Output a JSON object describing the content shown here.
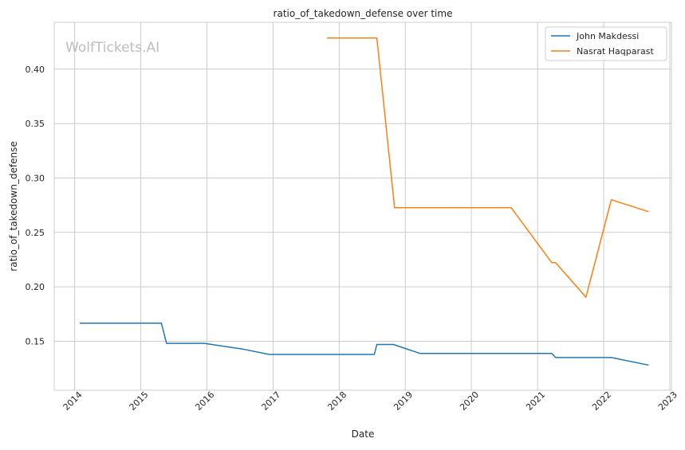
{
  "chart_data": {
    "type": "line",
    "title": "ratio_of_takedown_defense over time",
    "xlabel": "Date",
    "ylabel": "ratio_of_takedown_defense",
    "watermark": "WolfTickets.AI",
    "x_ticks": [
      "2014",
      "2015",
      "2016",
      "2017",
      "2018",
      "2019",
      "2020",
      "2021",
      "2022",
      "2023"
    ],
    "y_ticks": [
      "0.15",
      "0.20",
      "0.25",
      "0.30",
      "0.35",
      "0.40"
    ],
    "xlim": [
      "2013-09-10",
      "2023-01-10"
    ],
    "ylim": [
      0.105,
      0.443
    ],
    "grid": true,
    "legend_position": "top-right",
    "series": [
      {
        "name": "John Makdessi",
        "color": "#1f77b4",
        "points": [
          [
            "2014-02-01",
            0.1667
          ],
          [
            "2015-04-25",
            0.1667
          ],
          [
            "2015-05-23",
            0.1481
          ],
          [
            "2015-12-19",
            0.1481
          ],
          [
            "2016-07-15",
            0.1429
          ],
          [
            "2016-12-10",
            0.1379
          ],
          [
            "2018-07-14",
            0.1379
          ],
          [
            "2018-07-28",
            0.1471
          ],
          [
            "2018-10-27",
            0.1471
          ],
          [
            "2019-03-23",
            0.1389
          ],
          [
            "2021-03-20",
            0.1389
          ],
          [
            "2021-04-10",
            0.1351
          ],
          [
            "2022-02-12",
            0.1351
          ],
          [
            "2022-09-03",
            0.1282
          ]
        ]
      },
      {
        "name": "Nasrat Haqparast",
        "color": "#ff7f0e",
        "points": [
          [
            "2017-10-28",
            0.4286
          ],
          [
            "2018-07-28",
            0.4286
          ],
          [
            "2018-11-03",
            0.2727
          ],
          [
            "2020-08-08",
            0.2727
          ],
          [
            "2021-03-20",
            0.2222
          ],
          [
            "2021-04-10",
            0.2222
          ],
          [
            "2021-09-25",
            0.1905
          ],
          [
            "2022-02-12",
            0.28
          ],
          [
            "2022-09-03",
            0.2692
          ]
        ]
      }
    ]
  }
}
